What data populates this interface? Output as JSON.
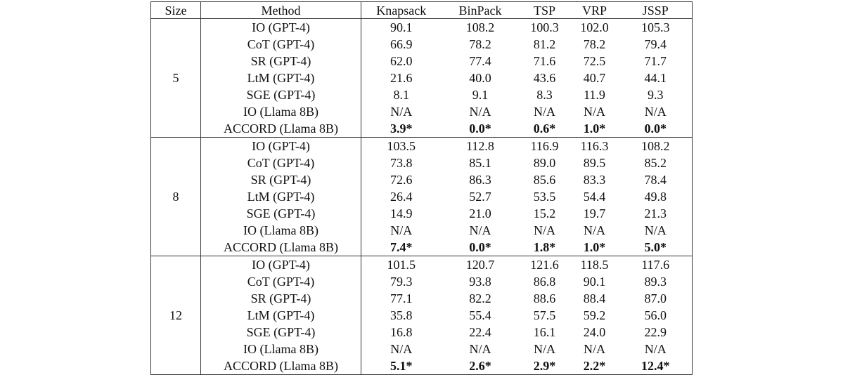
{
  "table": {
    "header": [
      "Size",
      "Method",
      "Knapsack",
      "BinPack",
      "TSP",
      "VRP",
      "JSSP"
    ],
    "groups": [
      {
        "size": "5",
        "rows": [
          [
            "IO (GPT-4)",
            "90.1",
            "108.2",
            "100.3",
            "102.0",
            "105.3"
          ],
          [
            "CoT (GPT-4)",
            "66.9",
            "78.2",
            "81.2",
            "78.2",
            "79.4"
          ],
          [
            "SR (GPT-4)",
            "62.0",
            "77.4",
            "71.6",
            "72.5",
            "71.7"
          ],
          [
            "LtM (GPT-4)",
            "21.6",
            "40.0",
            "43.6",
            "40.7",
            "44.1"
          ],
          [
            "SGE (GPT-4)",
            "8.1",
            "9.1",
            "8.3",
            "11.9",
            "9.3"
          ],
          [
            "IO (Llama 8B)",
            "N/A",
            "N/A",
            "N/A",
            "N/A",
            "N/A"
          ],
          [
            "ACCORD (Llama 8B)",
            "3.9*",
            "0.0*",
            "0.6*",
            "1.0*",
            "0.0*"
          ]
        ]
      },
      {
        "size": "8",
        "rows": [
          [
            "IO (GPT-4)",
            "103.5",
            "112.8",
            "116.9",
            "116.3",
            "108.2"
          ],
          [
            "CoT (GPT-4)",
            "73.8",
            "85.1",
            "89.0",
            "89.5",
            "85.2"
          ],
          [
            "SR (GPT-4)",
            "72.6",
            "86.3",
            "85.6",
            "83.3",
            "78.4"
          ],
          [
            "LtM (GPT-4)",
            "26.4",
            "52.7",
            "53.5",
            "54.4",
            "49.8"
          ],
          [
            "SGE (GPT-4)",
            "14.9",
            "21.0",
            "15.2",
            "19.7",
            "21.3"
          ],
          [
            "IO (Llama 8B)",
            "N/A",
            "N/A",
            "N/A",
            "N/A",
            "N/A"
          ],
          [
            "ACCORD (Llama 8B)",
            "7.4*",
            "0.0*",
            "1.8*",
            "1.0*",
            "5.0*"
          ]
        ]
      },
      {
        "size": "12",
        "rows": [
          [
            "IO (GPT-4)",
            "101.5",
            "120.7",
            "121.6",
            "118.5",
            "117.6"
          ],
          [
            "CoT (GPT-4)",
            "79.3",
            "93.8",
            "86.8",
            "90.1",
            "89.3"
          ],
          [
            "SR (GPT-4)",
            "77.1",
            "82.2",
            "88.6",
            "88.4",
            "87.0"
          ],
          [
            "LtM (GPT-4)",
            "35.8",
            "55.4",
            "57.5",
            "59.2",
            "56.0"
          ],
          [
            "SGE (GPT-4)",
            "16.8",
            "22.4",
            "16.1",
            "24.0",
            "22.9"
          ],
          [
            "IO (Llama 8B)",
            "N/A",
            "N/A",
            "N/A",
            "N/A",
            "N/A"
          ],
          [
            "ACCORD (Llama 8B)",
            "5.1*",
            "2.6*",
            "2.9*",
            "2.2*",
            "12.4*"
          ]
        ]
      }
    ]
  }
}
